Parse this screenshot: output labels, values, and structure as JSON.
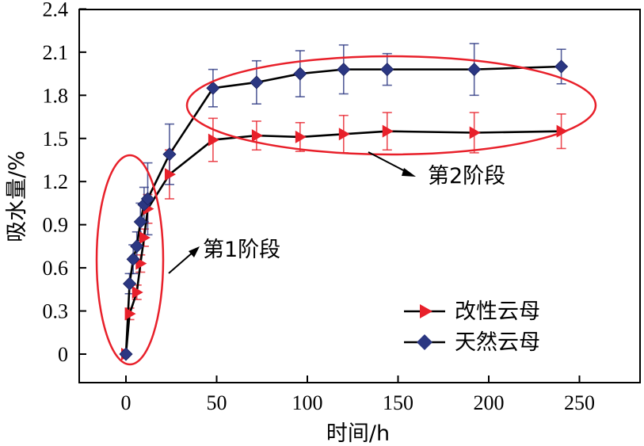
{
  "chart_data": {
    "type": "line",
    "title": "",
    "xlabel": "时间/h",
    "ylabel": "吸水量/%",
    "xlim": [
      -25,
      280
    ],
    "ylim": [
      -0.2,
      2.4
    ],
    "xticks": [
      0,
      50,
      100,
      150,
      200,
      250
    ],
    "yticks": [
      0,
      0.3,
      0.6,
      0.9,
      1.2,
      1.5,
      1.8,
      2.1,
      2.4
    ],
    "xtick_labels": [
      "0",
      "50",
      "100",
      "150",
      "200",
      "250"
    ],
    "ytick_labels": [
      "0",
      "0.3",
      "0.6",
      "0.9",
      "1.2",
      "1.5",
      "1.8",
      "2.1",
      "2.4"
    ],
    "grid": false,
    "legend_position": "bottom-right",
    "series": [
      {
        "name": "改性云母",
        "marker": "triangle-right",
        "color": "#e8202a",
        "line_color": "#000000",
        "x": [
          0,
          2,
          6,
          8,
          10,
          12,
          24,
          48,
          72,
          96,
          120,
          144,
          192,
          240
        ],
        "y": [
          0,
          0.28,
          0.43,
          0.63,
          0.81,
          1.01,
          1.25,
          1.49,
          1.52,
          1.51,
          1.53,
          1.55,
          1.54,
          1.55
        ],
        "err": [
          0,
          0.04,
          0.05,
          0.06,
          0.06,
          0.1,
          0.17,
          0.15,
          0.1,
          0.1,
          0.13,
          0.13,
          0.14,
          0.12
        ]
      },
      {
        "name": "天然云母",
        "marker": "diamond",
        "color": "#2b3782",
        "line_color": "#000000",
        "x": [
          0,
          2,
          4,
          6,
          8,
          10,
          12,
          24,
          48,
          72,
          96,
          120,
          144,
          192,
          240
        ],
        "y": [
          0,
          0.49,
          0.66,
          0.75,
          0.92,
          1.04,
          1.08,
          1.39,
          1.85,
          1.89,
          1.95,
          1.98,
          1.98,
          1.98,
          2.0
        ],
        "err": [
          0,
          0.07,
          0.1,
          0.1,
          0.13,
          0.12,
          0.25,
          0.21,
          0.13,
          0.15,
          0.16,
          0.17,
          0.11,
          0.18,
          0.12
        ]
      }
    ],
    "annotations": [
      {
        "text": "第1阶段",
        "target": "series points at 0–12 h",
        "shape": "ellipse",
        "color": "#e8202a"
      },
      {
        "text": "第2阶段",
        "target": "series points at 48–240 h",
        "shape": "ellipse",
        "color": "#e8202a"
      }
    ]
  }
}
